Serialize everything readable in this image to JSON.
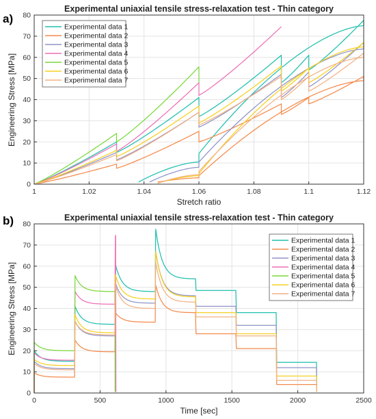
{
  "chart_data": [
    {
      "panel_label": "a)",
      "type": "line",
      "title": "Experimental uniaxial tensile stress-relaxation test - Thin category",
      "xlabel": "Stretch ratio",
      "ylabel": "Engineering Stress [MPa]",
      "xlim": [
        1.0,
        1.12
      ],
      "ylim": [
        0,
        80
      ],
      "xticks": [
        1,
        1.02,
        1.04,
        1.06,
        1.08,
        1.1,
        1.12
      ],
      "xtick_labels": [
        "1",
        "1.02",
        "1.04",
        "1.06",
        "1.08",
        "1.1",
        "1.12"
      ],
      "yticks": [
        0,
        10,
        20,
        30,
        40,
        50,
        60,
        70,
        80
      ],
      "grid": true,
      "legend_position": "top-left",
      "series": [
        {
          "name": "Experimental data 1",
          "color": "#1fbfae",
          "x": [
            1.0,
            1.03,
            1.03,
            1.06,
            1.06,
            1.09,
            1.09,
            1.1,
            1.1,
            1.12,
            1.12,
            1.06,
            1.06,
            1.038
          ],
          "y": [
            0,
            20,
            15,
            41,
            32,
            61,
            48,
            61,
            54,
            77.5,
            75,
            14.5,
            10.5,
            1
          ]
        },
        {
          "name": "Experimental data 2",
          "color": "#f58a4a",
          "x": [
            1.0,
            1.03,
            1.03,
            1.06,
            1.06,
            1.09,
            1.09,
            1.1,
            1.1,
            1.12,
            1.12,
            1.06,
            1.06,
            1.045
          ],
          "y": [
            0,
            9.5,
            7.5,
            25,
            20,
            38,
            33,
            41,
            38,
            51,
            49,
            4,
            3,
            1
          ]
        },
        {
          "name": "Experimental data 3",
          "color": "#8f93c8",
          "x": [
            1.0,
            1.03,
            1.03,
            1.06,
            1.06,
            1.09,
            1.09,
            1.1,
            1.1,
            1.12,
            1.12,
            1.06,
            1.06,
            1.042
          ],
          "y": [
            0,
            15,
            11.5,
            34,
            27,
            52,
            41,
            53,
            46,
            67,
            64,
            10.5,
            8,
            1
          ]
        },
        {
          "name": "Experimental data 4",
          "color": "#ee6fb6",
          "x": [
            1.0,
            1.03,
            1.03,
            1.06,
            1.06,
            1.09
          ],
          "y": [
            0,
            19,
            15.5,
            48,
            42,
            74.5
          ]
        },
        {
          "name": "Experimental data 5",
          "color": "#79d83a",
          "x": [
            1.0,
            1.03,
            1.03,
            1.06,
            1.06
          ],
          "y": [
            0,
            24,
            20,
            55.5,
            48
          ]
        },
        {
          "name": "Experimental data 6",
          "color": "#f5d020",
          "x": [
            1.0,
            1.03,
            1.03,
            1.06,
            1.06,
            1.09,
            1.09,
            1.1,
            1.1,
            1.12,
            1.12,
            1.06,
            1.06,
            1.045
          ],
          "y": [
            0,
            16,
            13,
            37,
            29,
            56,
            44,
            55,
            48,
            67,
            65,
            5,
            4,
            0.5
          ]
        },
        {
          "name": "Experimental data 7",
          "color": "#f2b183",
          "x": [
            1.0,
            1.03,
            1.03,
            1.06,
            1.06,
            1.09,
            1.09,
            1.1,
            1.1,
            1.12,
            1.12,
            1.06,
            1.06,
            1.045
          ],
          "y": [
            0,
            14,
            11,
            34,
            28,
            51,
            40,
            51,
            44,
            62,
            60,
            6,
            4.5,
            0.5
          ]
        }
      ]
    },
    {
      "panel_label": "b)",
      "type": "line",
      "title": "Experimental uniaxial tensile stress-relaxation test - Thin category",
      "xlabel": "Time [sec]",
      "ylabel": "Engineering Stress [MPa]",
      "xlim": [
        0,
        2500
      ],
      "ylim": [
        0,
        80
      ],
      "xticks": [
        0,
        500,
        1000,
        1500,
        2000,
        2500
      ],
      "yticks": [
        0,
        10,
        20,
        30,
        40,
        50,
        60,
        70,
        80
      ],
      "grid": true,
      "legend_position": "top-right",
      "step_times": [
        0,
        306,
        612,
        918,
        1224,
        1530,
        1836,
        2142
      ],
      "series": [
        {
          "name": "Experimental data 1",
          "color": "#1fbfae",
          "peaks": [
            20,
            41,
            61,
            77.5,
            48.5,
            38,
            14.5
          ],
          "relaxed": [
            15,
            32.5,
            48,
            54,
            48.5,
            38,
            14.5
          ],
          "level_before": [
            [
              0,
              0
            ],
            [
              15,
              15
            ],
            [
              32.5,
              32.5
            ],
            [
              48,
              48
            ],
            [
              54,
              54
            ],
            [
              48.5,
              48.5
            ],
            [
              38,
              38
            ]
          ],
          "end_time": 2142
        },
        {
          "name": "Experimental data 2",
          "color": "#f58a4a",
          "peaks": [
            9.5,
            25,
            38,
            51,
            28,
            21,
            4
          ],
          "relaxed": [
            7.5,
            19.5,
            33.5,
            38,
            28,
            21,
            4
          ],
          "end_time": 2142
        },
        {
          "name": "Experimental data 3",
          "color": "#8f93c8",
          "peaks": [
            15,
            34,
            52,
            67,
            41,
            32,
            12
          ],
          "relaxed": [
            11.5,
            27,
            42.5,
            46,
            41,
            32,
            12
          ],
          "end_time": 2142
        },
        {
          "name": "Experimental data 4",
          "color": "#ee6fb6",
          "peaks": [
            19,
            48,
            74.5
          ],
          "relaxed": [
            15.5,
            42,
            74.5
          ],
          "end_time": 618
        },
        {
          "name": "Experimental data 5",
          "color": "#79d83a",
          "peaks": [
            24,
            55.5
          ],
          "relaxed": [
            20,
            48
          ],
          "end_time": 612
        },
        {
          "name": "Experimental data 6",
          "color": "#f5d020",
          "peaks": [
            16,
            37,
            56,
            67,
            38,
            28,
            8
          ],
          "relaxed": [
            13,
            28.5,
            44.5,
            45.5,
            38,
            28,
            8
          ],
          "end_time": 2142
        },
        {
          "name": "Experimental data 7",
          "color": "#f2b183",
          "peaks": [
            14,
            34,
            51,
            62,
            36,
            27,
            6
          ],
          "relaxed": [
            11,
            27.5,
            40,
            43,
            36,
            27,
            6
          ],
          "end_time": 2142
        }
      ]
    }
  ]
}
